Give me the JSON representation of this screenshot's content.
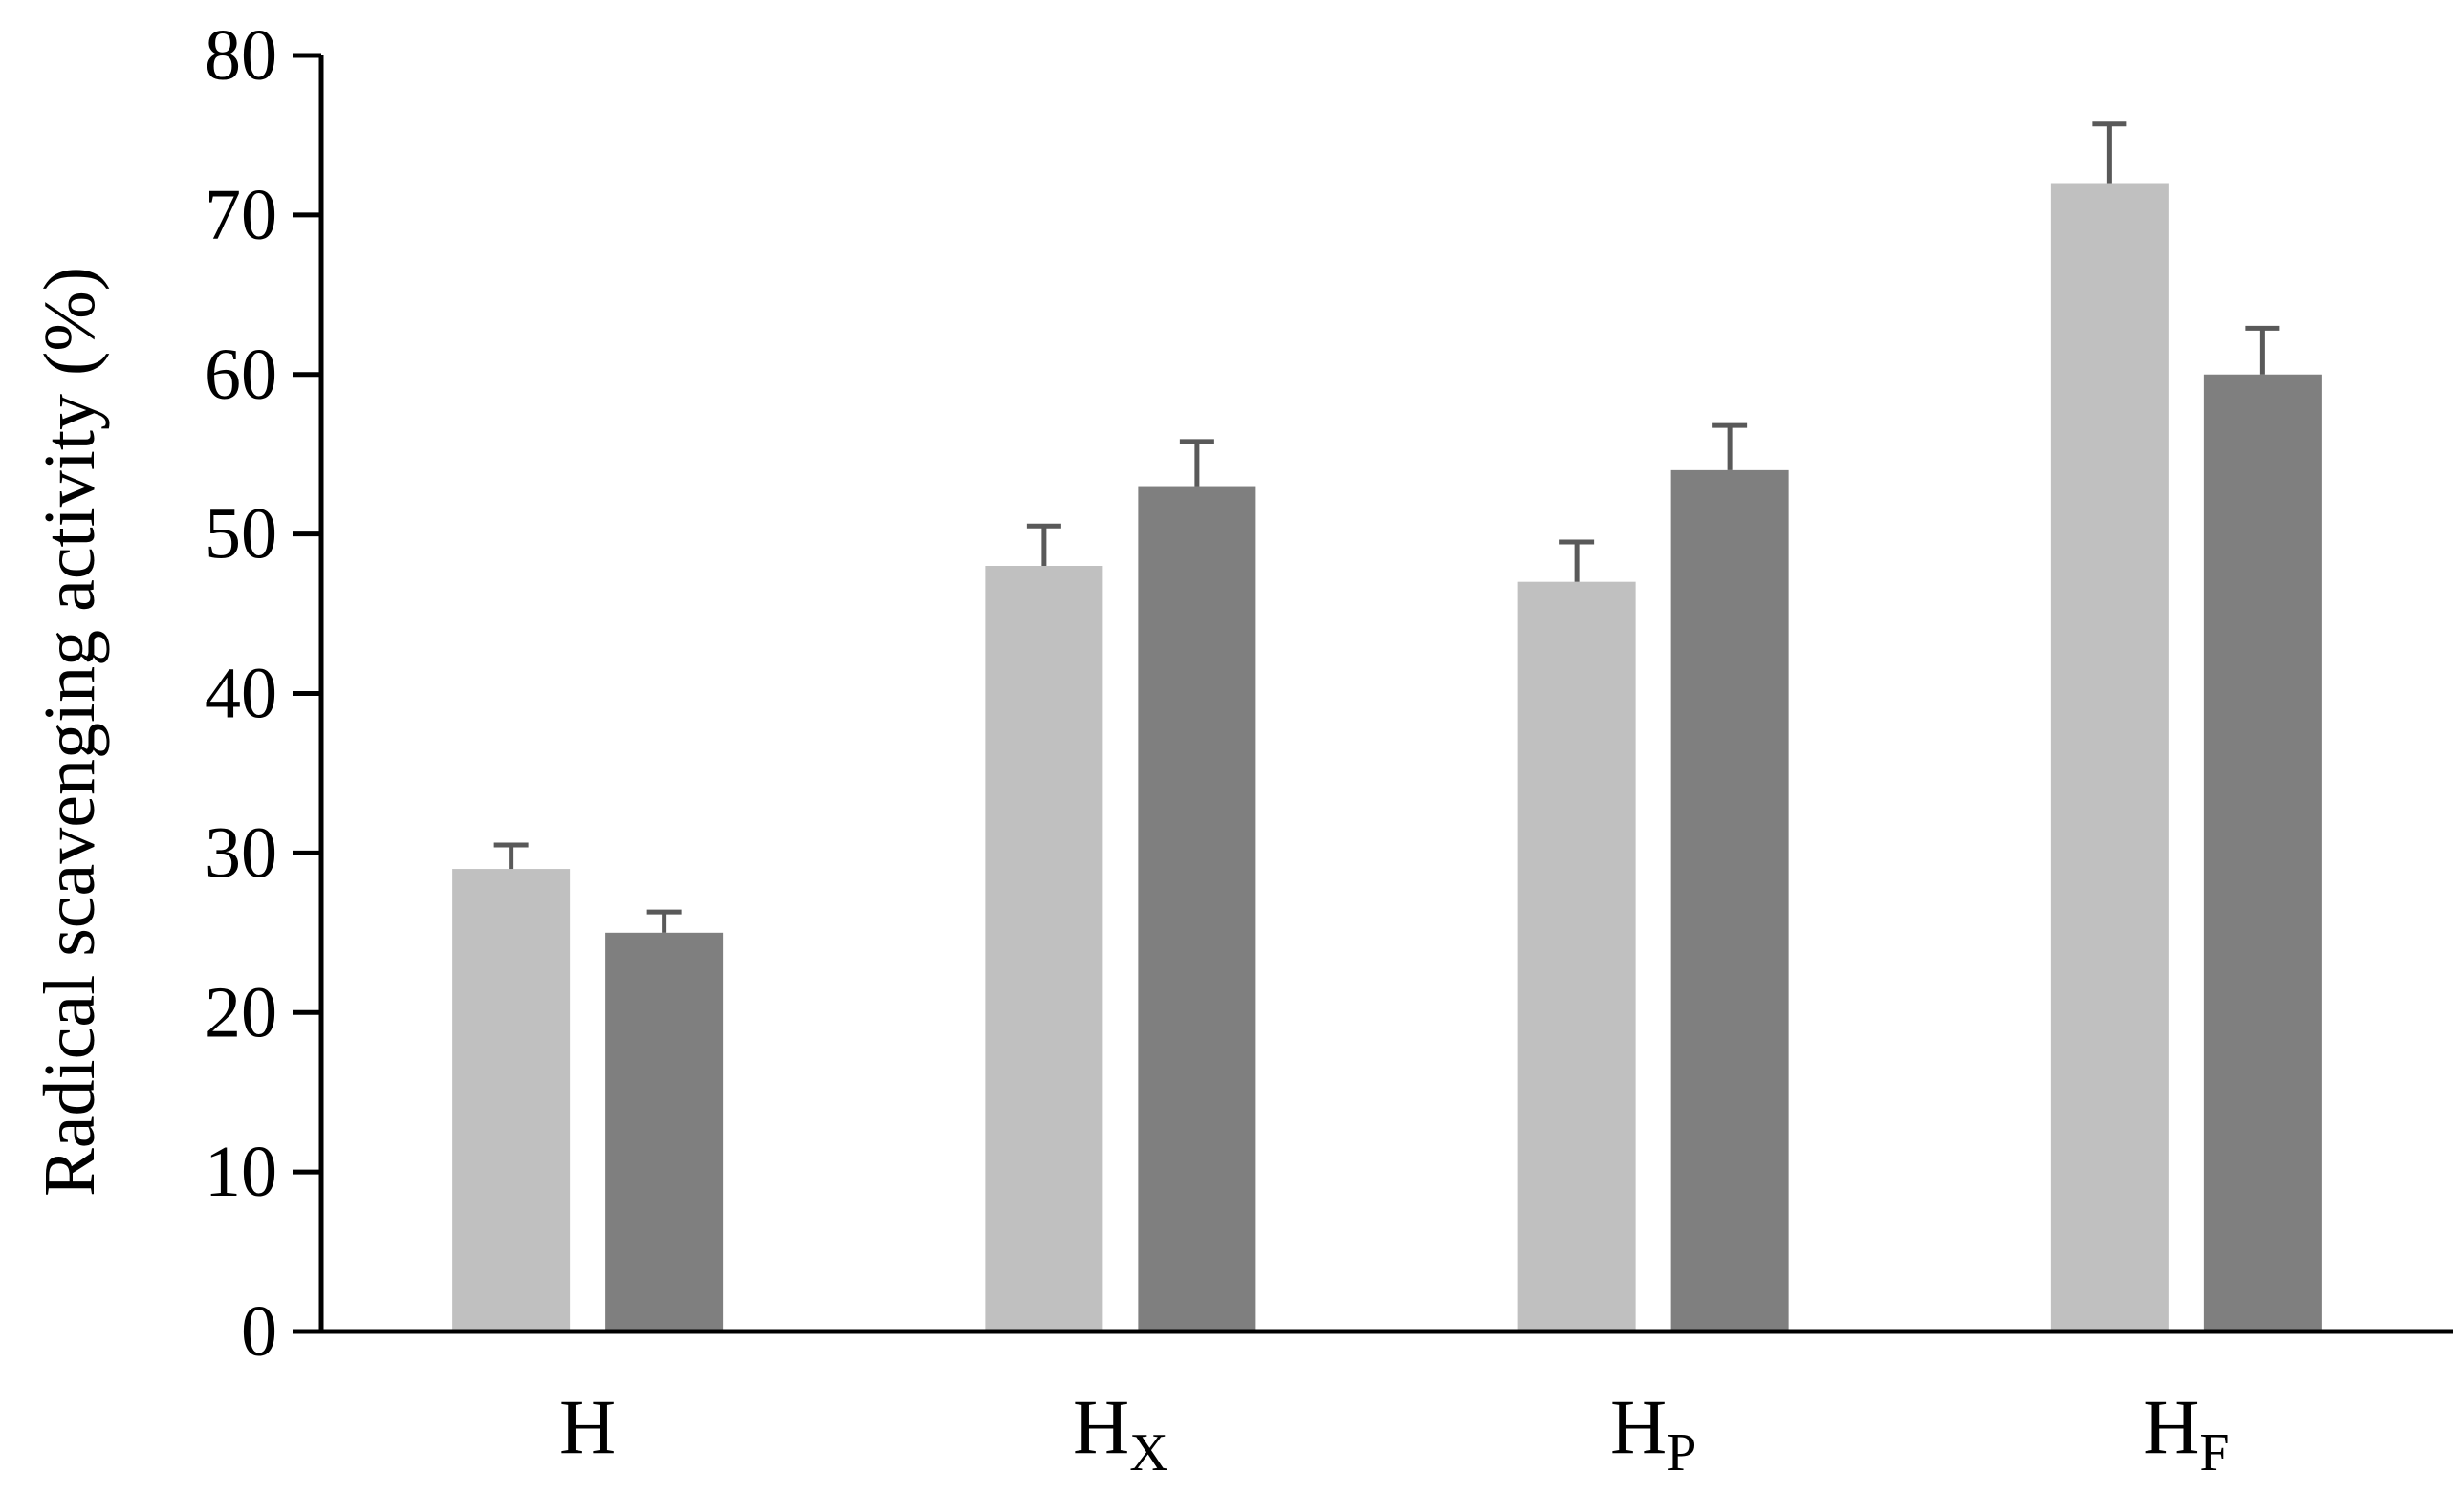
{
  "chart_data": {
    "type": "bar",
    "ylabel": "Radical scavenging activity (%)",
    "xlabel": "",
    "ylim": [
      0,
      80
    ],
    "yticks": [
      0,
      10,
      20,
      30,
      40,
      50,
      60,
      70,
      80
    ],
    "grid": false,
    "legend": "none",
    "categories": [
      {
        "base": "H",
        "sub": ""
      },
      {
        "base": "H",
        "sub": "X"
      },
      {
        "base": "H",
        "sub": "P"
      },
      {
        "base": "H",
        "sub": "F"
      }
    ],
    "series": [
      {
        "values": [
          29,
          48,
          47,
          72
        ],
        "errors": [
          1.5,
          2.5,
          2.5,
          3.7
        ],
        "color": "#c0c0c0"
      },
      {
        "values": [
          25,
          53,
          54,
          60
        ],
        "errors": [
          1.3,
          2.8,
          2.8,
          2.9
        ],
        "color": "#7f7f7f"
      }
    ],
    "colors": {
      "axis": "#000000",
      "error_bar": "#595959"
    }
  }
}
